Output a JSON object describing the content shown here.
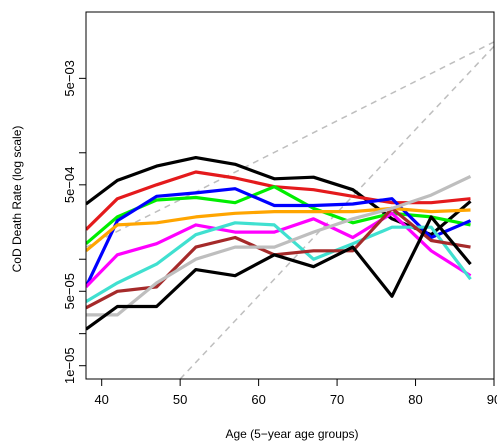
{
  "chart_data": {
    "type": "line",
    "title": "",
    "xlabel": "Age (5−year age groups)",
    "ylabel": "CoD Death Rate (log scale)",
    "y_scale": "log",
    "xlim": [
      38,
      90
    ],
    "ylim": [
      7.5e-06,
      0.021
    ],
    "x_ticks": [
      40,
      50,
      60,
      70,
      80,
      90
    ],
    "x_tick_labels": [
      "40",
      "50",
      "60",
      "70",
      "80",
      "90"
    ],
    "y_ticks": [
      1e-05,
      2e-05,
      5e-05,
      0.0001,
      0.0005,
      0.001,
      0.005
    ],
    "y_tick_labels": [
      "1e−05",
      "",
      "5e−05",
      "",
      "5e−04",
      "",
      "5e−03"
    ],
    "grid": false,
    "legend": "none",
    "x": [
      38,
      42,
      47,
      52,
      57,
      62,
      67,
      72,
      77,
      82,
      87
    ],
    "series": [
      {
        "color": "#000000",
        "values": [
          0.00033,
          0.00055,
          0.00075,
          0.0009,
          0.00078,
          0.00057,
          0.00059,
          0.00045,
          0.00024,
          0.00017,
          0.00035
        ]
      },
      {
        "color": "#e41a1c",
        "values": [
          0.00019,
          0.00037,
          0.0005,
          0.00066,
          0.00058,
          0.00048,
          0.00045,
          0.00039,
          0.00034,
          0.00034,
          0.00037
        ]
      },
      {
        "color": "#00ee00",
        "values": [
          0.00014,
          0.00025,
          0.00036,
          0.00038,
          0.00034,
          0.00048,
          0.0003,
          0.00022,
          0.00027,
          0.00025,
          0.00021
        ]
      },
      {
        "color": "#0000ff",
        "values": [
          5.5e-05,
          0.00023,
          0.00039,
          0.00042,
          0.00046,
          0.00032,
          0.00032,
          0.00033,
          0.00037,
          0.00016,
          0.00023
        ]
      },
      {
        "color": "#ffa500",
        "values": [
          0.00012,
          0.00021,
          0.00022,
          0.00025,
          0.00027,
          0.00028,
          0.00028,
          0.00028,
          0.0003,
          0.00028,
          0.00029
        ]
      },
      {
        "color": "#ff00ff",
        "values": [
          5.5e-05,
          0.00011,
          0.00014,
          0.00021,
          0.00018,
          0.00018,
          0.00024,
          0.00016,
          0.00027,
          0.00012,
          7e-05
        ]
      },
      {
        "color": "#40e0d0",
        "values": [
          4e-05,
          6e-05,
          9e-05,
          0.00017,
          0.00022,
          0.00021,
          0.0001,
          0.00014,
          0.0002,
          0.0002,
          6.5e-05
        ]
      },
      {
        "color": "#a52a2a",
        "values": [
          3.5e-05,
          5e-05,
          5.5e-05,
          0.00013,
          0.00016,
          0.00011,
          0.00012,
          0.00012,
          0.0003,
          0.00015,
          0.00013
        ]
      },
      {
        "color": "#bebebe",
        "values": [
          3e-05,
          3e-05,
          6e-05,
          0.0001,
          0.00013,
          0.00013,
          0.00018,
          0.00024,
          0.0003,
          0.0004,
          0.0006
        ]
      },
      {
        "color": "#000000",
        "values": [
          2.2e-05,
          3.6e-05,
          3.6e-05,
          8e-05,
          7e-05,
          0.00011,
          8.5e-05,
          0.00013,
          4.5e-05,
          0.00025,
          9e-05
        ]
      }
    ],
    "reference_lines": [
      {
        "color": "#bebebe",
        "style": "dashed",
        "x": [
          38,
          90
        ],
        "y": [
          0.00013,
          0.011
        ]
      },
      {
        "color": "#bebebe",
        "style": "dashed",
        "x": [
          50,
          90
        ],
        "y": [
          7.5e-06,
          0.01
        ]
      }
    ]
  }
}
